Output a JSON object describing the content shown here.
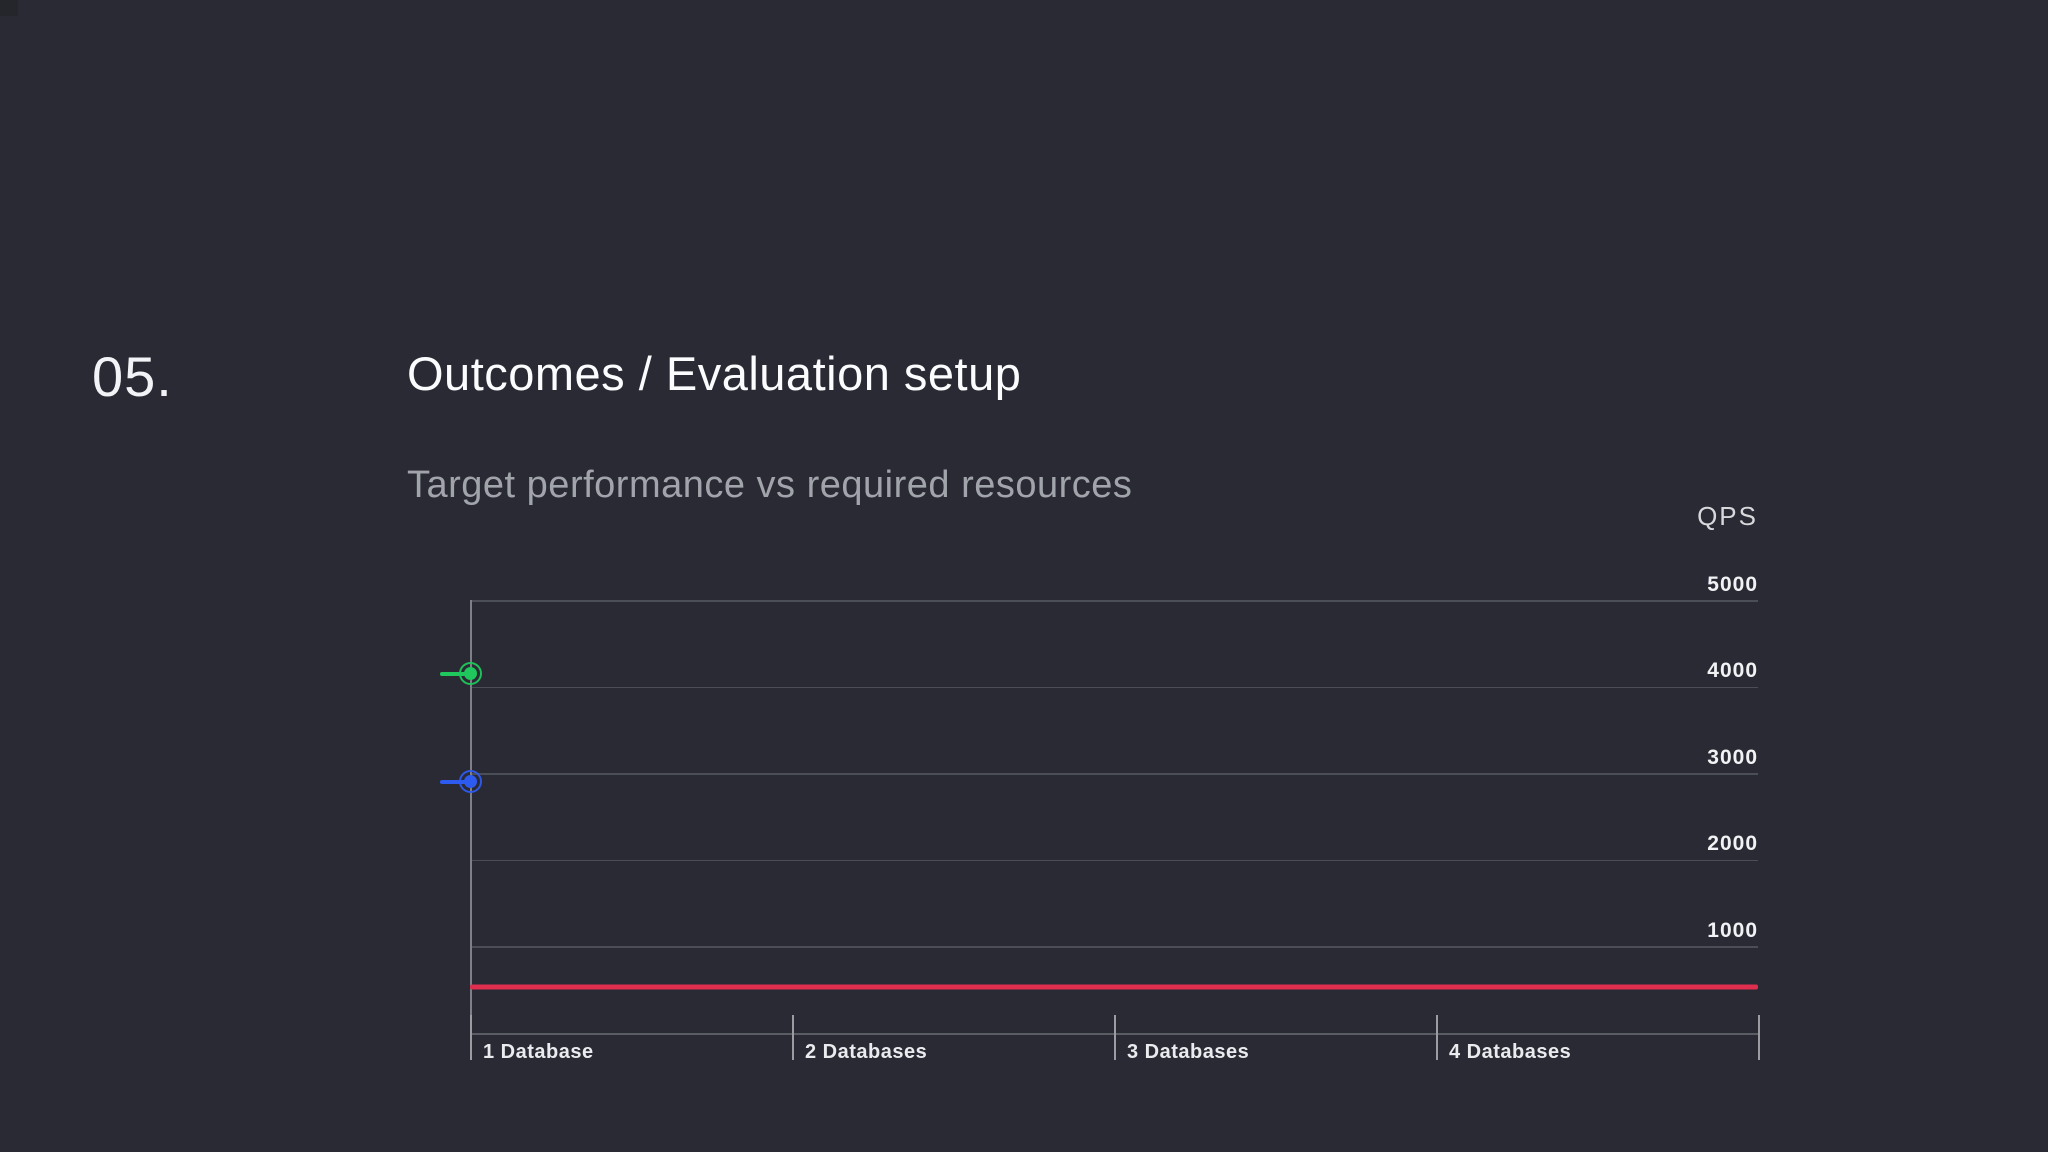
{
  "slide": {
    "section_number": "05.",
    "title": "Outcomes / Evaluation setup",
    "subtitle": "Target performance vs required resources"
  },
  "chart_data": {
    "type": "scatter",
    "title": "Target performance vs required resources",
    "unit_label": "QPS",
    "categories": [
      "1 Database",
      "2 Databases",
      "3 Databases",
      "4 Databases"
    ],
    "y_ticks": [
      5000,
      4000,
      3000,
      2000,
      1000
    ],
    "ylim": [
      0,
      5000
    ],
    "xlabel": "",
    "ylabel": "QPS",
    "grid": "horizontal-only",
    "legend": "none",
    "series": [
      {
        "name": "green-point",
        "type": "point",
        "color": "#1fc75c",
        "values": [
          4150
        ]
      },
      {
        "name": "blue-point",
        "type": "point",
        "color": "#2e5bef",
        "values": [
          2900
        ]
      },
      {
        "name": "red-target-line",
        "type": "hline",
        "color": "#e02e4f",
        "value": 530
      }
    ]
  }
}
